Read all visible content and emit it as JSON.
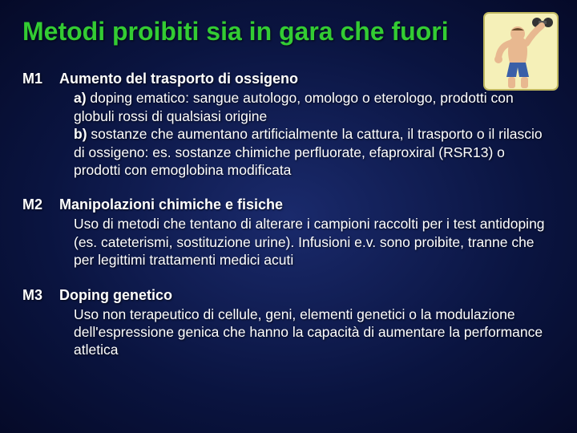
{
  "title": "Metodi proibiti sia in gara che fuori",
  "title_color": "#33cc33",
  "title_fontsize": 32,
  "body_fontsize": 17.5,
  "background_gradient": [
    "#1a2a6c",
    "#0a1440",
    "#050a28"
  ],
  "items": [
    {
      "code": "M1",
      "heading": "Aumento del trasporto di ossigeno",
      "body_html": "<b>a)</b> doping ematico: sangue autologo, omologo o eterologo, prodotti con globuli rossi di qualsiasi origine<br><b>b)</b> sostanze che aumentano artificialmente la cattura, il trasporto o il rilascio di ossigeno: es. sostanze chimiche perfluorate, efaproxiral (RSR13) o prodotti con emoglobina modificata"
    },
    {
      "code": "M2",
      "heading": "Manipolazioni chimiche e fisiche",
      "body_html": "Uso di metodi che tentano di alterare i campioni raccolti per i test antidoping (es. cateterismi, sostituzione urine). Infusioni e.v. sono proibite, tranne che  per legittimi trattamenti medici acuti"
    },
    {
      "code": "M3",
      "heading": "Doping genetico",
      "body_html": "Uso non terapeutico di cellule, geni, elementi genetici o la modulazione dell'espressione genica che hanno la capacità di aumentare la performance atletica"
    }
  ],
  "corner_image": {
    "name": "bodybuilder-icon",
    "bg_color": "#f5f0b8",
    "border_color": "#c0b860",
    "skin_color": "#e8b890",
    "dumbbell_color": "#333333"
  }
}
